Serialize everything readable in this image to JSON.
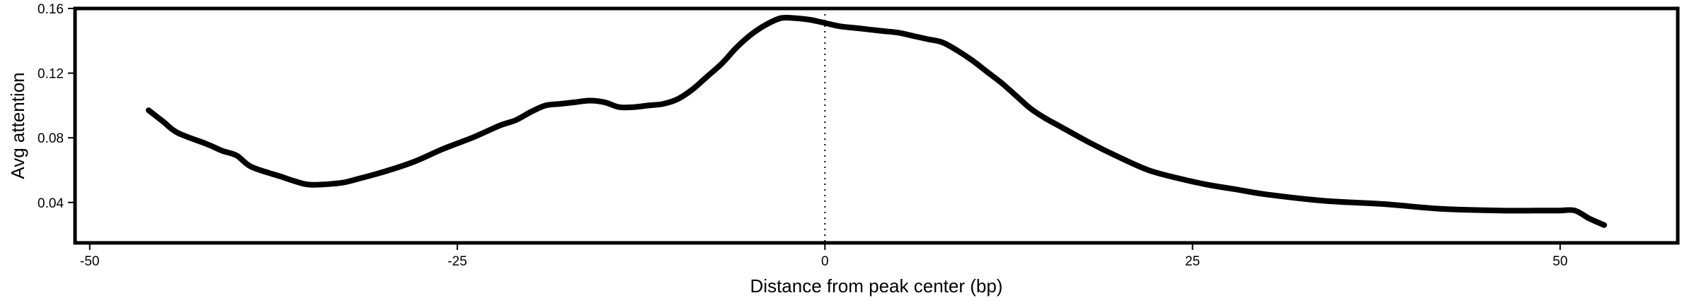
{
  "chart_data": {
    "type": "line",
    "xlabel": "Distance from peak center (bp)",
    "ylabel": "Avg attention",
    "xlim": [
      -51,
      58
    ],
    "ylim": [
      0.015,
      0.16
    ],
    "x_ticks": [
      -50,
      -25,
      0,
      25,
      50
    ],
    "x_tick_labels": [
      "-50",
      "-25",
      "0",
      "25",
      "50"
    ],
    "y_ticks": [
      0.04,
      0.08,
      0.12,
      0.16
    ],
    "y_tick_labels": [
      "0.04",
      "0.08",
      "0.12",
      "0.16"
    ],
    "reference_line": {
      "x": 0,
      "style": "dotted"
    },
    "grid": false,
    "line_color": "#000000",
    "series": [
      {
        "x": [
          -46,
          -45,
          -44,
          -42,
          -41,
          -40,
          -39,
          -37,
          -36,
          -35,
          -33,
          -32,
          -30,
          -28,
          -26,
          -24,
          -23,
          -22,
          -21,
          -20,
          -19,
          -18,
          -17,
          -16,
          -15,
          -14,
          -13,
          -12,
          -11,
          -10,
          -9,
          -8,
          -7,
          -6,
          -5,
          -4,
          -3,
          -2,
          -1,
          0,
          1,
          2,
          3,
          4,
          5,
          6,
          7,
          8,
          9,
          10,
          11,
          12,
          13,
          14,
          15,
          16,
          18,
          20,
          22,
          24,
          26,
          28,
          30,
          34,
          38,
          42,
          46,
          49,
          50,
          51,
          52,
          53
        ],
        "y": [
          0.097,
          0.09,
          0.083,
          0.076,
          0.072,
          0.069,
          0.062,
          0.056,
          0.053,
          0.051,
          0.052,
          0.054,
          0.059,
          0.065,
          0.073,
          0.08,
          0.084,
          0.088,
          0.091,
          0.096,
          0.1,
          0.101,
          0.102,
          0.103,
          0.102,
          0.099,
          0.099,
          0.1,
          0.101,
          0.104,
          0.11,
          0.118,
          0.126,
          0.136,
          0.144,
          0.15,
          0.154,
          0.154,
          0.153,
          0.151,
          0.149,
          0.148,
          0.147,
          0.146,
          0.145,
          0.143,
          0.141,
          0.139,
          0.134,
          0.128,
          0.121,
          0.114,
          0.106,
          0.098,
          0.092,
          0.087,
          0.077,
          0.068,
          0.06,
          0.055,
          0.051,
          0.048,
          0.045,
          0.041,
          0.039,
          0.036,
          0.035,
          0.035,
          0.035,
          0.035,
          0.03,
          0.026
        ]
      }
    ]
  }
}
